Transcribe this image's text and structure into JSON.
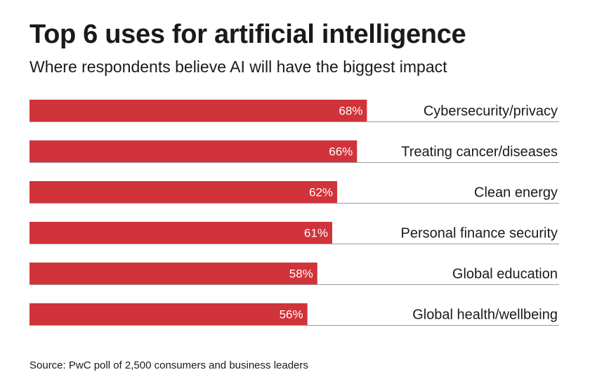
{
  "header": {
    "title": "Top 6 uses for artificial intelligence",
    "subtitle": "Where respondents believe AI will have the biggest impact"
  },
  "footer": {
    "source": "Source: PwC poll of 2,500 consumers and business leaders"
  },
  "colors": {
    "bar": "#d03339",
    "bar_label": "#ffffff",
    "divider": "#999999",
    "text": "#1a1a1a"
  },
  "chart_data": {
    "type": "bar",
    "orientation": "horizontal",
    "categories": [
      "Cybersecurity/privacy",
      "Treating cancer/diseases",
      "Clean energy",
      "Personal finance security",
      "Global education",
      "Global health/wellbeing"
    ],
    "values": [
      68,
      66,
      62,
      61,
      58,
      56
    ],
    "value_labels": [
      "68%",
      "66%",
      "62%",
      "61%",
      "58%",
      "56%"
    ],
    "xlim": [
      0,
      100
    ],
    "grid": false,
    "legend": "none"
  }
}
